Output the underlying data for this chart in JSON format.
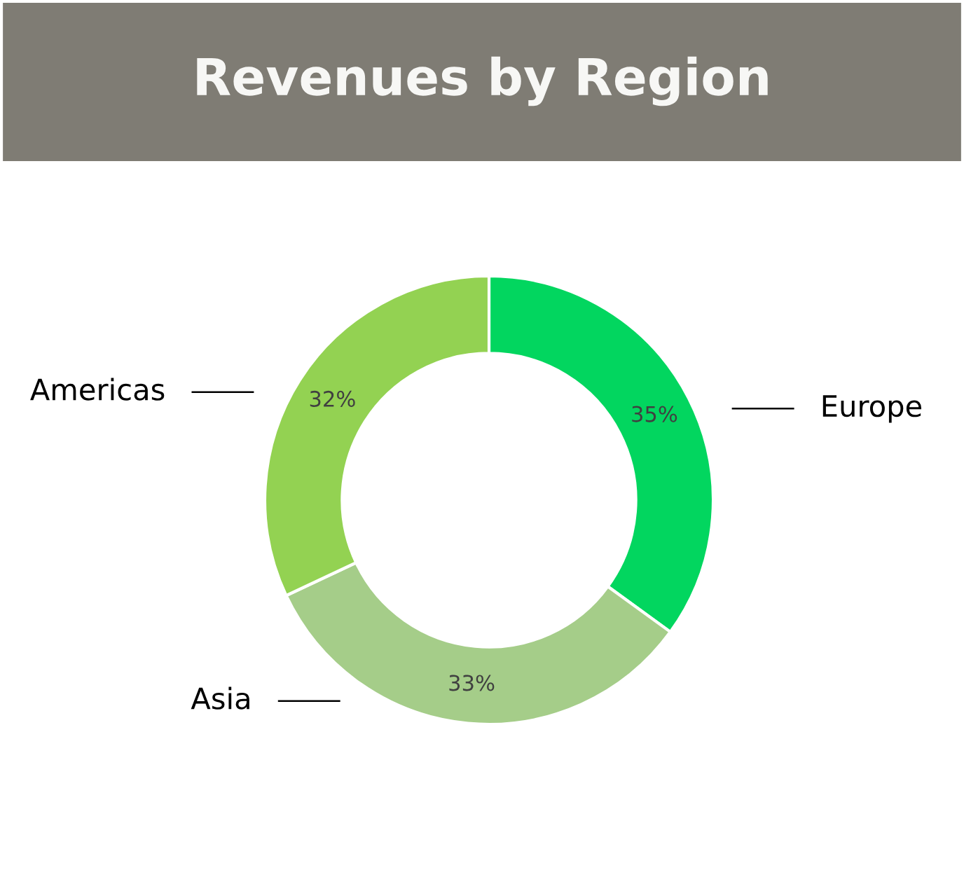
{
  "chart_data": {
    "type": "donut",
    "title": "Revenues by Region",
    "categories": [
      "Europe",
      "Asia",
      "Americas"
    ],
    "values": [
      35,
      33,
      32
    ],
    "colors": [
      "#02d65f",
      "#a5cd89",
      "#93d252"
    ],
    "value_labels": [
      "35%",
      "33%",
      "32%"
    ],
    "legend": false
  }
}
